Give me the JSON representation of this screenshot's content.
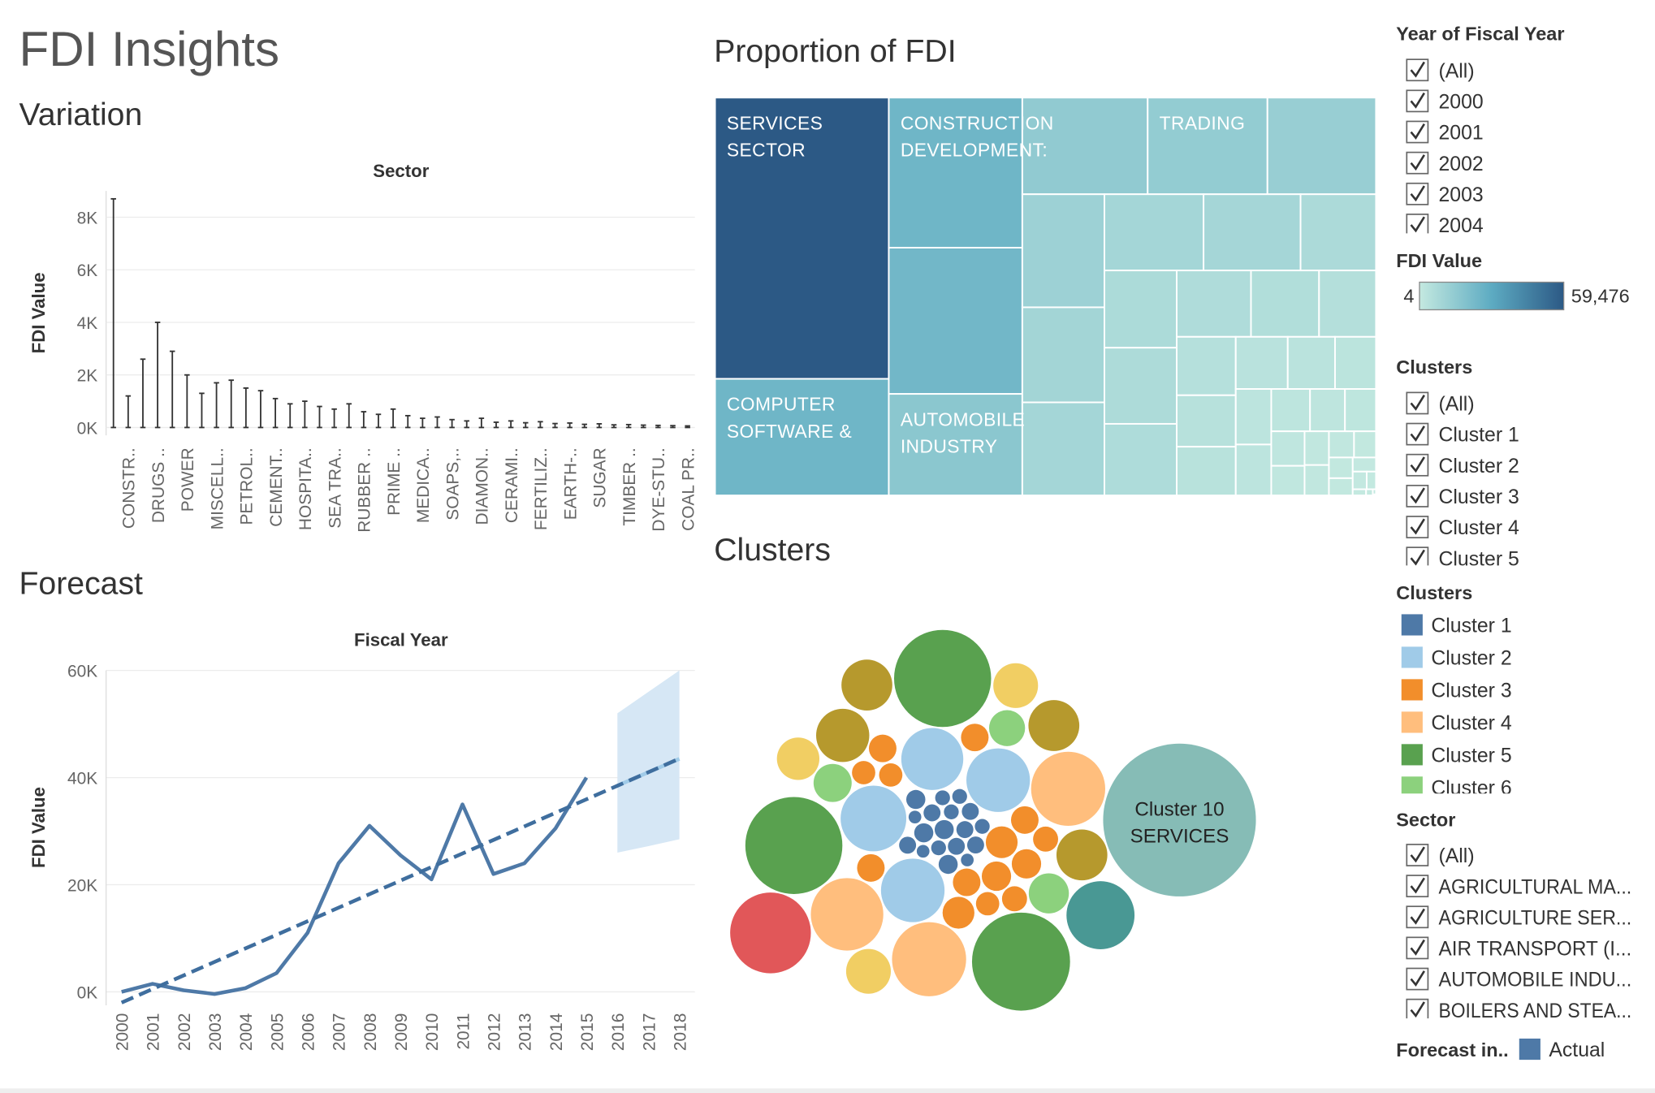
{
  "title": "FDI Insights",
  "chart_data": [
    {
      "type": "box",
      "title": "Variation",
      "subtitle": "Sector",
      "y_label": "FDI Value",
      "color": "#333333",
      "categories": [
        null,
        "CONSTR..",
        null,
        "DRUGS ..",
        null,
        "POWER",
        null,
        "MISCELL..",
        null,
        "PETROL..",
        null,
        "CEMENT..",
        null,
        "HOSPITA..",
        null,
        "SEA TRA..",
        null,
        "RUBBER ..",
        null,
        "PRIME ..",
        null,
        "MEDICA..",
        null,
        "SOAPS,..",
        null,
        "DIAMON..",
        null,
        "CERAMI..",
        null,
        "FERTILIZ..",
        null,
        "EARTH-..",
        null,
        "SUGAR",
        null,
        "TIMBER ..",
        null,
        "DYE-STU..",
        null,
        "COAL PR.."
      ],
      "values": [
        8700,
        1200,
        2600,
        4000,
        2900,
        2000,
        1300,
        1700,
        1800,
        1500,
        1400,
        1100,
        900,
        1000,
        800,
        700,
        900,
        600,
        500,
        700,
        450,
        350,
        400,
        300,
        250,
        350,
        200,
        250,
        180,
        220,
        150,
        170,
        120,
        140,
        100,
        110,
        90,
        80,
        70,
        60
      ],
      "ylim": [
        -300,
        9000
      ],
      "yticks": [
        {
          "value": 0,
          "label": "0K"
        },
        {
          "value": 2000,
          "label": "2K"
        },
        {
          "value": 4000,
          "label": "4K"
        },
        {
          "value": 6000,
          "label": "6K"
        },
        {
          "value": 8000,
          "label": "8K"
        }
      ],
      "grid": true
    },
    {
      "type": "treemap",
      "title": "Proportion of FDI",
      "color_label": "FDI Value",
      "color_ticks": [
        4,
        {
          "value": 59476,
          "label": "59,476"
        }
      ],
      "color_stops": [
        "#c4e9e0",
        "#5dabc2",
        "#2c5985"
      ],
      "categories": [
        "SERVICES SECTOR",
        "COMPUTER SOFTWARE &",
        "CONSTRUCTION DEVELOPMENT:",
        null,
        "AUTOMOBILE INDUSTRY",
        null,
        "TRADING",
        null,
        null,
        null,
        null,
        null,
        null,
        null,
        null,
        null,
        null,
        null,
        null,
        null,
        null,
        null,
        null,
        null,
        null,
        null,
        null,
        null,
        null,
        null,
        null,
        null,
        null,
        null,
        null,
        null,
        null,
        null,
        null,
        null,
        null,
        null,
        null,
        null,
        null,
        null
      ],
      "values": [
        59476,
        24660,
        24400,
        23770,
        16500,
        14750,
        14090,
        12770,
        11300,
        9500,
        9300,
        9200,
        9000,
        7000,
        6800,
        6700,
        6300,
        6000,
        5500,
        4600,
        4200,
        3700,
        3500,
        3300,
        3000,
        2600,
        2400,
        2200,
        2000,
        1800,
        1600,
        1400,
        1200,
        1000,
        900,
        800,
        700,
        600,
        500,
        400,
        300,
        200,
        100,
        50,
        20,
        4
      ]
    },
    {
      "type": "bubble",
      "title": "Clusters",
      "legend_title": "Clusters",
      "series": [
        {
          "name": "Cluster 1",
          "color": "#4e79a7",
          "values": [
            929,
            734,
            734,
            562,
            929,
            734,
            562,
            413,
            734,
            929,
            562,
            734,
            413,
            562,
            734,
            929,
            562,
            413
          ]
        },
        {
          "name": "Cluster 2",
          "color": "#a0cbe8",
          "values": [
            10300,
            11000,
            9800,
            10300
          ]
        },
        {
          "name": "Cluster 3",
          "color": "#f28e2b",
          "values": [
            2581,
            1939,
            2200,
            1939,
            2581,
            1388,
            1939,
            2200,
            1388,
            1939,
            1600,
            1388,
            1939,
            1600
          ]
        },
        {
          "name": "Cluster 4",
          "color": "#ffbe7d",
          "values": [
            14000,
            13400,
            14000
          ]
        },
        {
          "name": "Cluster 5",
          "color": "#59a14f",
          "values": [
            24000,
            24000,
            24500
          ]
        },
        {
          "name": "Cluster 6",
          "color": "#8cd17d",
          "values": [
            3300,
            4100,
            3700
          ]
        },
        {
          "name": null,
          "color": "#b6992d",
          "values": [
            7200,
            6600,
            6600,
            6600
          ]
        },
        {
          "name": null,
          "color": "#f1ce63",
          "values": [
            5100,
            5100,
            4600
          ]
        },
        {
          "name": null,
          "color": "#499894",
          "values": [
            11800
          ]
        },
        {
          "name": "Cluster 10",
          "color": "#86bcb6",
          "values": [
            59476
          ],
          "labels": [
            "SERVICES"
          ]
        },
        {
          "name": null,
          "color": "#e15759",
          "values": [
            16600
          ]
        }
      ]
    },
    {
      "type": "line",
      "title": "Forecast",
      "subtitle": "Fiscal Year",
      "y_label": "FDI Value",
      "legend_title": "Forecast in..",
      "x": [
        2000,
        2001,
        2002,
        2003,
        2004,
        2005,
        2006,
        2007,
        2008,
        2009,
        2010,
        2011,
        2012,
        2013,
        2014,
        2015,
        2016,
        2017,
        2018
      ],
      "xlim": [
        1999.5,
        2018.5
      ],
      "ylim": [
        -2500,
        60000
      ],
      "yticks": [
        {
          "value": 0,
          "label": "0K"
        },
        {
          "value": 20000,
          "label": "20K"
        },
        {
          "value": 40000,
          "label": "40K"
        },
        {
          "value": 60000,
          "label": "60K"
        }
      ],
      "grid": true,
      "series": [
        {
          "name": "Actual",
          "color": "#4e79a7",
          "values": [
            0,
            1500,
            300,
            -400,
            700,
            3500,
            11000,
            24000,
            31000,
            25500,
            21000,
            35000,
            22000,
            24000,
            30500,
            40000,
            null,
            null,
            null
          ]
        },
        {
          "name": null,
          "color": "#a0cbe8",
          "values": [
            null,
            null,
            null,
            null,
            null,
            null,
            null,
            null,
            null,
            null,
            null,
            null,
            null,
            null,
            null,
            null,
            38500,
            41000,
            43500
          ]
        },
        {
          "name": null,
          "color": "#3f6e9e",
          "dashed": true,
          "values": [
            -2000,
            530,
            3060,
            5590,
            8120,
            10650,
            13180,
            15710,
            18240,
            20770,
            23300,
            25830,
            28360,
            30890,
            33420,
            35950,
            38480,
            41010,
            43540
          ]
        }
      ],
      "band": {
        "color": "#d6e7f5",
        "upper": [
          null,
          null,
          null,
          null,
          null,
          null,
          null,
          null,
          null,
          null,
          null,
          null,
          null,
          null,
          null,
          null,
          52000,
          56000,
          60000
        ],
        "lower": [
          null,
          null,
          null,
          null,
          null,
          null,
          null,
          null,
          null,
          null,
          null,
          null,
          null,
          null,
          null,
          null,
          26000,
          27200,
          28500
        ]
      }
    }
  ],
  "filters": [
    {
      "title": "Year of Fiscal Year",
      "items": [
        "(All)",
        "2000",
        "2001",
        "2002",
        "2003",
        "2004"
      ]
    },
    {
      "title": "Clusters",
      "items": [
        "(All)",
        "Cluster 1",
        "Cluster 2",
        "Cluster 3",
        "Cluster 4",
        "Cluster 5"
      ]
    },
    {
      "title": "Sector",
      "items": [
        "(All)",
        "AGRICULTURAL MA...",
        "AGRICULTURE SER...",
        "AIR TRANSPORT (I...",
        "AUTOMOBILE INDU...",
        "BOILERS AND STEA..."
      ]
    }
  ]
}
